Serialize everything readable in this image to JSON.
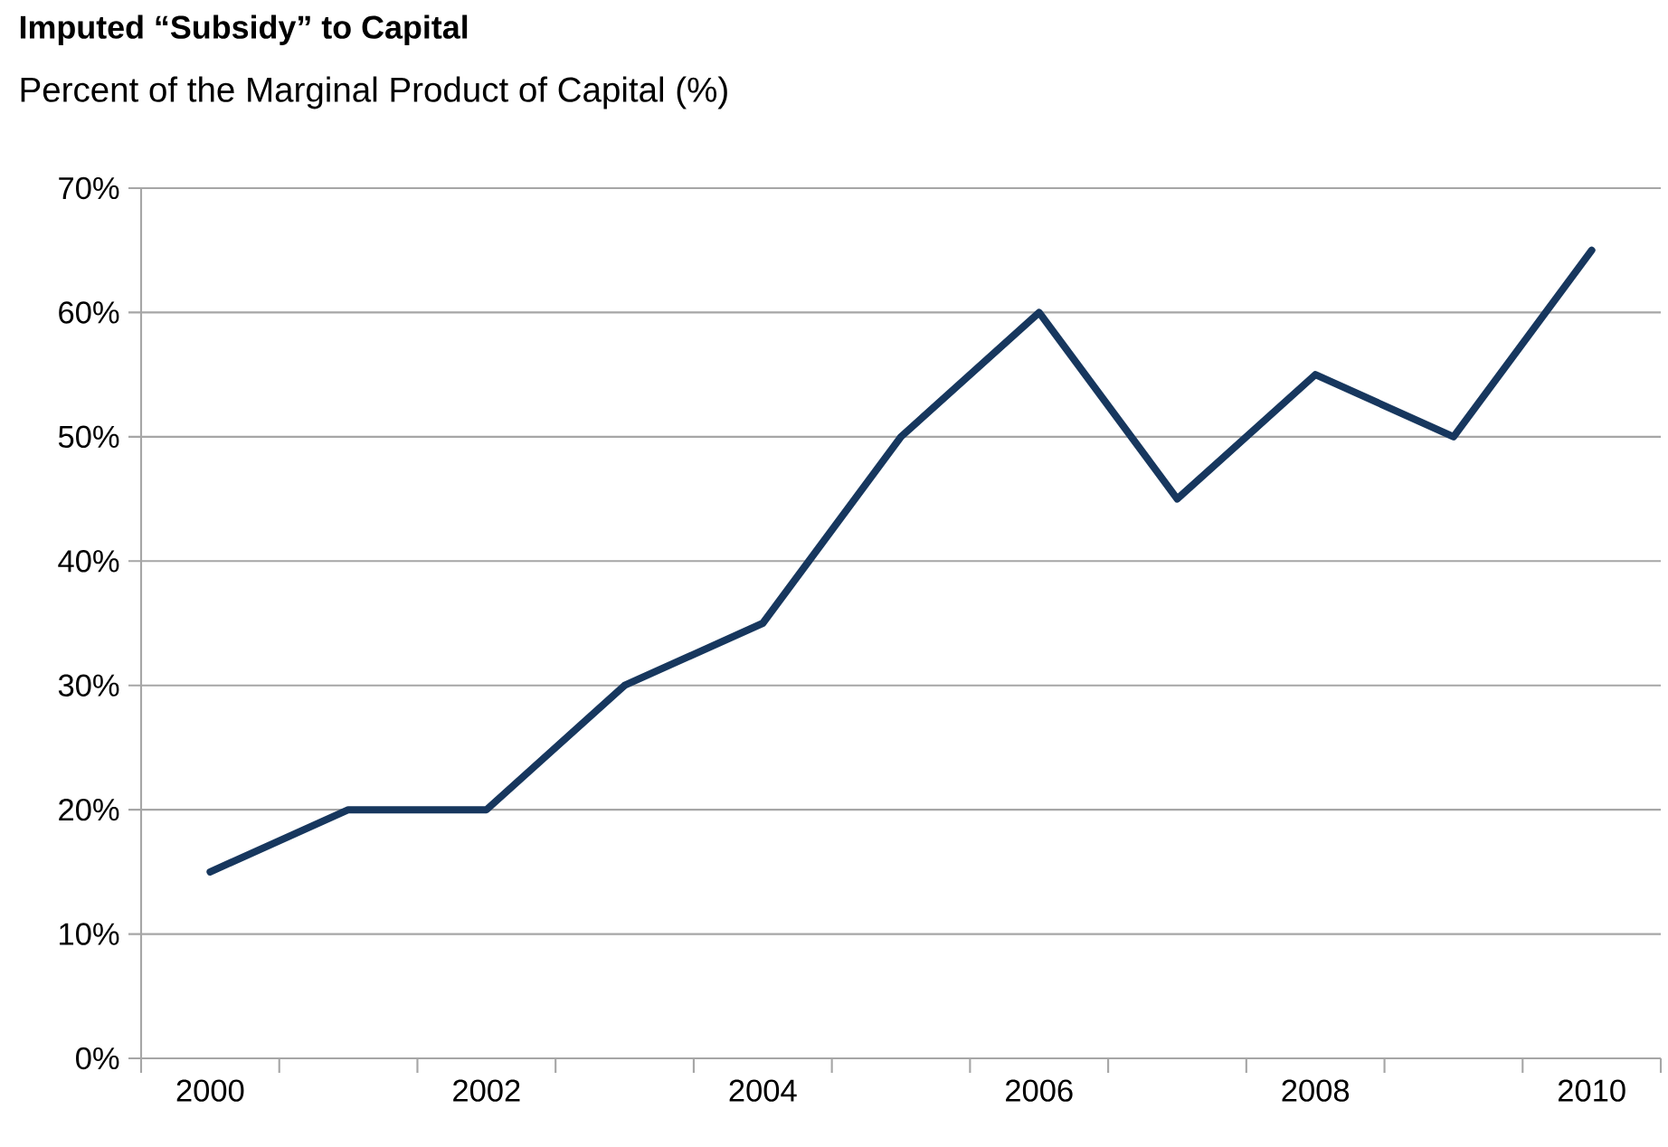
{
  "chart_data": {
    "type": "line",
    "title": "Imputed “Subsidy” to Capital",
    "subtitle": "Percent of the Marginal Product of Capital (%)",
    "categories": [
      "2000",
      null,
      "2002",
      null,
      "2004",
      null,
      "2006",
      null,
      "2008",
      null,
      "2010"
    ],
    "series": [
      {
        "color": "#17375e",
        "values": [
          15,
          20,
          20,
          30,
          35,
          50,
          60,
          45,
          55,
          50,
          65
        ]
      }
    ],
    "ylim": [
      0,
      70
    ],
    "yticks": [
      {
        "value": 0,
        "label": "0%"
      },
      {
        "value": 10,
        "label": "10%"
      },
      {
        "value": 20,
        "label": "20%"
      },
      {
        "value": 30,
        "label": "30%"
      },
      {
        "value": 40,
        "label": "40%"
      },
      {
        "value": 50,
        "label": "50%"
      },
      {
        "value": 60,
        "label": "60%"
      },
      {
        "value": 70,
        "label": "70%"
      }
    ],
    "grid": "y",
    "legend": false,
    "marker": "none",
    "line_style": "solid"
  }
}
